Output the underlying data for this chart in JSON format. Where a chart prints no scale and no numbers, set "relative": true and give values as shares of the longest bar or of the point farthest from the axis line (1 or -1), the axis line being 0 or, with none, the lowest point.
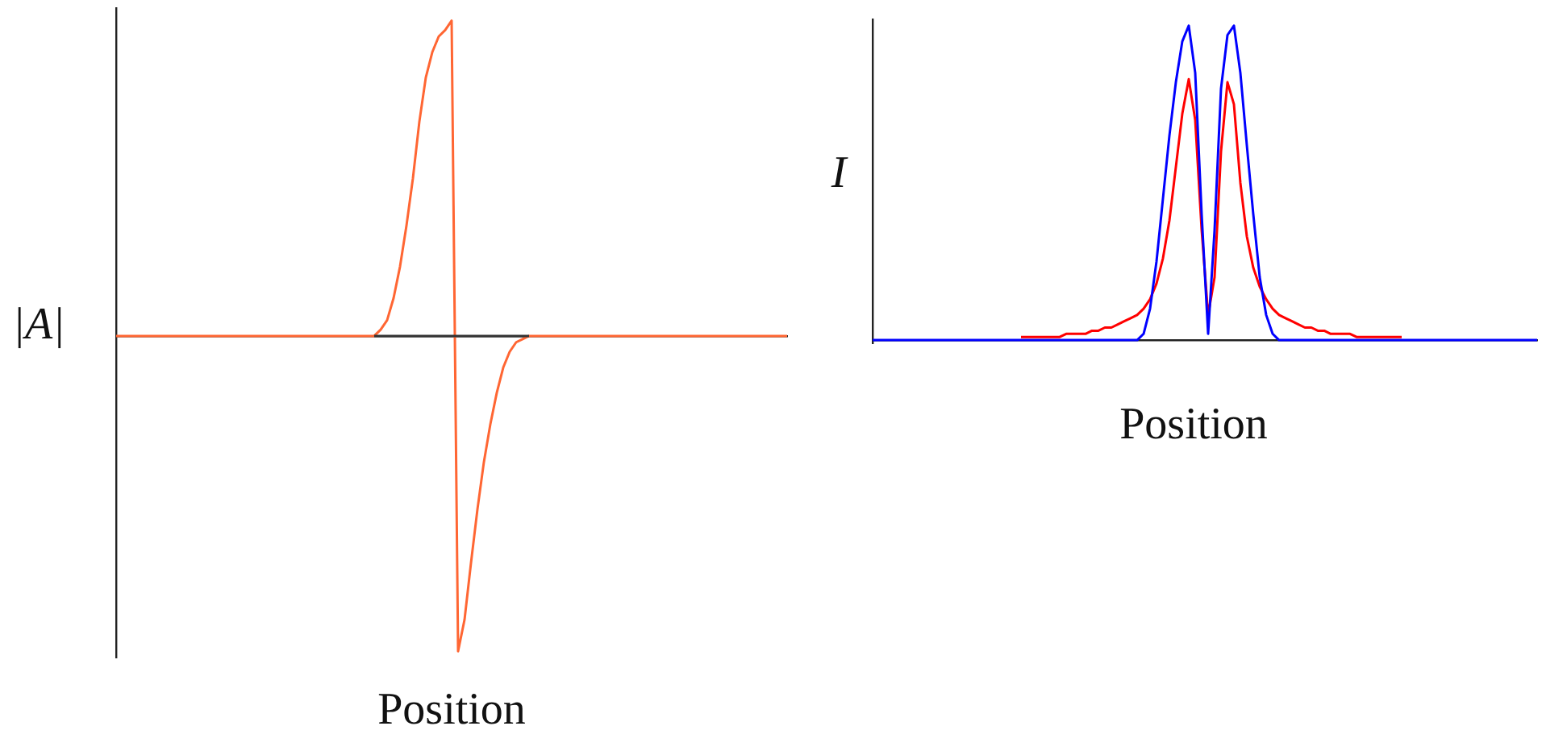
{
  "chart_data": [
    {
      "type": "line",
      "relative": true,
      "xlabel": "Position",
      "ylabel": "|A|",
      "legend": false,
      "grid": false,
      "marker": "none",
      "categories": [
        null,
        null,
        null,
        null,
        null,
        null,
        null,
        null,
        null,
        null,
        null,
        null,
        null,
        null,
        null,
        null,
        null,
        null,
        null,
        null,
        null,
        null,
        null,
        null,
        null,
        null,
        null,
        null,
        null,
        null,
        null,
        null,
        null,
        null,
        null,
        null,
        null,
        null,
        null,
        null,
        null,
        null,
        null,
        null,
        null,
        null,
        null,
        null,
        null,
        null,
        null,
        null,
        null,
        null,
        null,
        null,
        null,
        null,
        null,
        null,
        null,
        null,
        null,
        null,
        null,
        null,
        null,
        null,
        null,
        null,
        null,
        null,
        null,
        null,
        null,
        null,
        null,
        null,
        null,
        null,
        null,
        null,
        null,
        null,
        null,
        null,
        null,
        null,
        null,
        null,
        null,
        null,
        null,
        null,
        null,
        null,
        null,
        null,
        null,
        null,
        null,
        null,
        null,
        null,
        null
      ],
      "series": [
        {
          "color": "#ff6633",
          "values": [
            0,
            0,
            0,
            0,
            0,
            0,
            0,
            0,
            0,
            0,
            0,
            0,
            0,
            0,
            0,
            0,
            0,
            0,
            0,
            0,
            0,
            0,
            0,
            0,
            0,
            0,
            0,
            0,
            0,
            0,
            0,
            0,
            0,
            0,
            0,
            0,
            0,
            0,
            0,
            0,
            0,
            0.02,
            0.05,
            0.12,
            0.22,
            0.35,
            0.5,
            0.68,
            0.82,
            0.9,
            0.95,
            0.97,
            1,
            -1,
            -0.9,
            -0.72,
            -0.55,
            -0.4,
            -0.28,
            -0.18,
            -0.1,
            -0.05,
            -0.02,
            -0.01,
            0,
            0,
            0,
            0,
            0,
            0,
            0,
            0,
            0,
            0,
            0,
            0,
            0,
            0,
            0,
            0,
            0,
            0,
            0,
            0,
            0,
            0,
            0,
            0,
            0,
            0,
            0,
            0,
            0,
            0,
            0,
            0,
            0,
            0,
            0,
            0,
            0,
            0,
            0,
            0,
            0
          ]
        },
        {
          "color": "#333333",
          "values": [
            null,
            null,
            null,
            null,
            null,
            null,
            null,
            null,
            null,
            null,
            null,
            null,
            null,
            null,
            null,
            null,
            null,
            null,
            null,
            null,
            null,
            null,
            null,
            null,
            null,
            null,
            null,
            null,
            null,
            null,
            null,
            null,
            null,
            null,
            null,
            null,
            null,
            null,
            null,
            null,
            0,
            0,
            0,
            0,
            0,
            0,
            0,
            0,
            0,
            0,
            0,
            0,
            0,
            0,
            0,
            0,
            0,
            0,
            0,
            0,
            0,
            0,
            0,
            0,
            0,
            null,
            null,
            null,
            null,
            null,
            null,
            null,
            null,
            null,
            null,
            null,
            null,
            null,
            null,
            null,
            null,
            null,
            null,
            null,
            null,
            null,
            null,
            null,
            null,
            null,
            null,
            null,
            null,
            null,
            null,
            null,
            null,
            null,
            null,
            null,
            null,
            null,
            null,
            null,
            null
          ]
        }
      ]
    },
    {
      "type": "line",
      "relative": true,
      "xlabel": "Position",
      "ylabel": "I",
      "legend": false,
      "grid": false,
      "marker": "none",
      "categories": [
        null,
        null,
        null,
        null,
        null,
        null,
        null,
        null,
        null,
        null,
        null,
        null,
        null,
        null,
        null,
        null,
        null,
        null,
        null,
        null,
        null,
        null,
        null,
        null,
        null,
        null,
        null,
        null,
        null,
        null,
        null,
        null,
        null,
        null,
        null,
        null,
        null,
        null,
        null,
        null,
        null,
        null,
        null,
        null,
        null,
        null,
        null,
        null,
        null,
        null,
        null,
        null,
        null,
        null,
        null,
        null,
        null,
        null,
        null,
        null,
        null,
        null,
        null,
        null,
        null,
        null,
        null,
        null,
        null,
        null,
        null,
        null,
        null,
        null,
        null,
        null,
        null,
        null,
        null,
        null,
        null,
        null,
        null,
        null,
        null,
        null,
        null,
        null,
        null,
        null,
        null,
        null,
        null,
        null,
        null,
        null,
        null,
        null,
        null,
        null,
        null,
        null,
        null,
        null
      ],
      "series": [
        {
          "color": "#ff0000",
          "values": [
            null,
            null,
            null,
            null,
            null,
            null,
            null,
            null,
            null,
            null,
            null,
            null,
            null,
            null,
            null,
            null,
            null,
            null,
            null,
            null,
            null,
            null,
            null,
            0.01,
            0.01,
            0.01,
            0.01,
            0.01,
            0.01,
            0.01,
            0.02,
            0.02,
            0.02,
            0.02,
            0.03,
            0.03,
            0.04,
            0.04,
            0.05,
            0.06,
            0.07,
            0.08,
            0.1,
            0.13,
            0.18,
            0.26,
            0.38,
            0.55,
            0.72,
            0.83,
            0.7,
            0.35,
            0.08,
            0.2,
            0.6,
            0.82,
            0.75,
            0.5,
            0.33,
            0.23,
            0.17,
            0.13,
            0.1,
            0.08,
            0.07,
            0.06,
            0.05,
            0.04,
            0.04,
            0.03,
            0.03,
            0.02,
            0.02,
            0.02,
            0.02,
            0.01,
            0.01,
            0.01,
            0.01,
            0.01,
            0.01,
            0.01,
            0.01,
            null,
            null,
            null,
            null,
            null,
            null,
            null,
            null,
            null,
            null,
            null,
            null,
            null,
            null,
            null,
            null,
            null,
            null,
            null,
            null,
            null
          ]
        },
        {
          "color": "#0000ff",
          "values": [
            0,
            0,
            0,
            0,
            0,
            0,
            0,
            0,
            0,
            0,
            0,
            0,
            0,
            0,
            0,
            0,
            0,
            0,
            0,
            0,
            0,
            0,
            0,
            0,
            0,
            0,
            0,
            0,
            0,
            0,
            0,
            0,
            0,
            0,
            0,
            0,
            0,
            0,
            0,
            0,
            0,
            0,
            0.02,
            0.1,
            0.25,
            0.45,
            0.65,
            0.82,
            0.95,
            1,
            0.85,
            0.4,
            0.02,
            0.35,
            0.8,
            0.97,
            1,
            0.85,
            0.62,
            0.4,
            0.2,
            0.08,
            0.02,
            0,
            0,
            0,
            0,
            0,
            0,
            0,
            0,
            0,
            0,
            0,
            0,
            0,
            0,
            0,
            0,
            0,
            0,
            0,
            0,
            0,
            0,
            0,
            0,
            0,
            0,
            0,
            0,
            0,
            0,
            0,
            0,
            0,
            0,
            0,
            0,
            0,
            0,
            0,
            0,
            0
          ]
        }
      ]
    }
  ]
}
